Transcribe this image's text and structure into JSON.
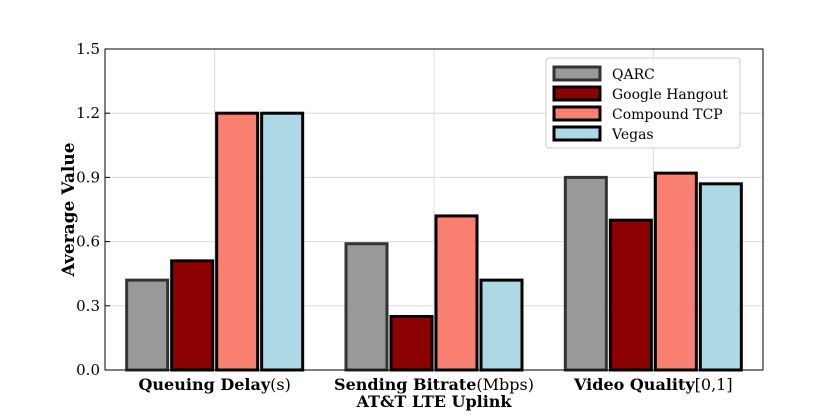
{
  "chart_data": {
    "type": "bar",
    "title": "",
    "xlabel": "AT&T LTE Uplink",
    "ylabel": "Average Value",
    "ylim": [
      0,
      1.5
    ],
    "yticks": [
      "0.0",
      "0.3",
      "0.6",
      "0.9",
      "1.2",
      "1.5"
    ],
    "grid": true,
    "legend_position": "top-right",
    "categories": [
      {
        "bold": "Queuing Delay",
        "unit": "(s)"
      },
      {
        "bold": "Sending Bitrate",
        "unit": "(Mbps)"
      },
      {
        "bold": "Video Quality",
        "unit": "[0,1]"
      }
    ],
    "series": [
      {
        "name": "QARC",
        "color": "#999999",
        "edge": "#333333",
        "values": [
          0.42,
          0.59,
          0.9
        ]
      },
      {
        "name": "Google Hangout",
        "color": "#8b0000",
        "edge": "#000000",
        "values": [
          0.51,
          0.25,
          0.7
        ]
      },
      {
        "name": "Compound TCP",
        "color": "#fa8072",
        "edge": "#000000",
        "values": [
          1.2,
          0.72,
          0.92
        ]
      },
      {
        "name": "Vegas",
        "color": "#add8e6",
        "edge": "#000000",
        "values": [
          1.2,
          0.42,
          0.87
        ]
      }
    ]
  }
}
